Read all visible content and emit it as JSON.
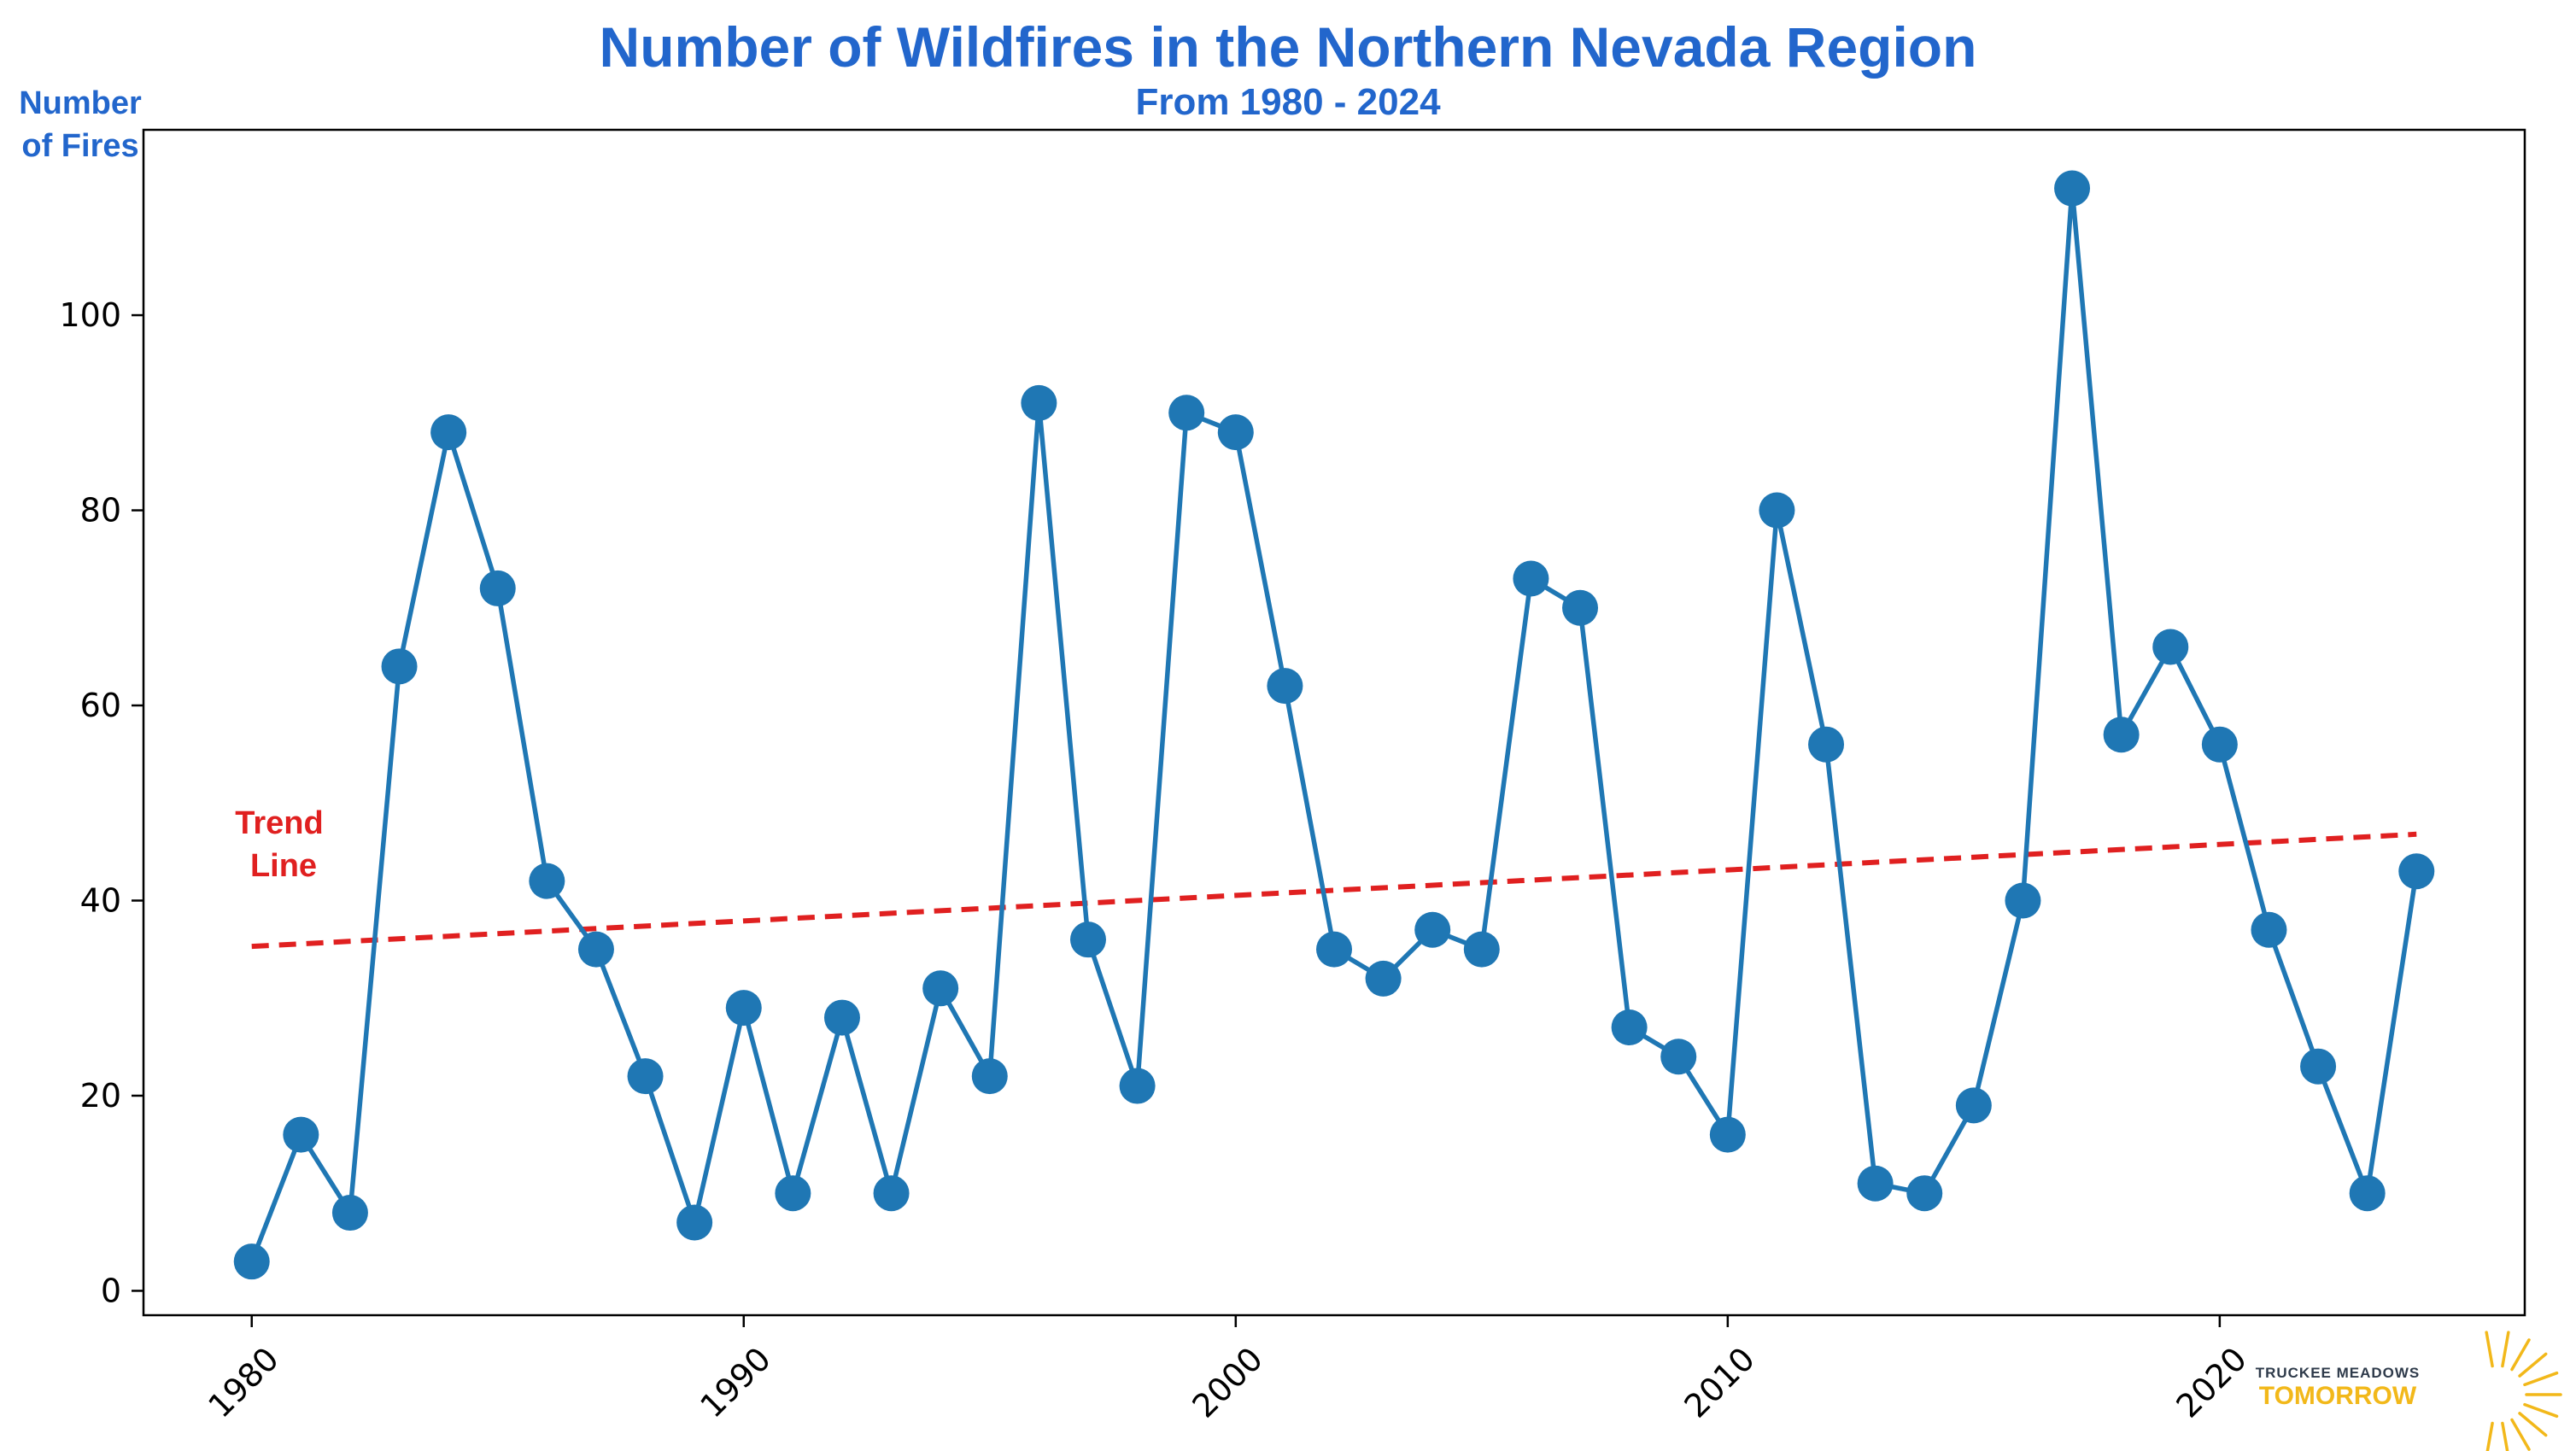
{
  "chart_data": {
    "type": "line",
    "title": "Number of Wildfires in the Northern Nevada Region",
    "subtitle": "From 1980 - 2024",
    "ylabel_line1": "Number",
    "ylabel_line2": "of Fires",
    "xlabel": "",
    "xlim": [
      1977.8,
      2026.2
    ],
    "ylim": [
      -2.5,
      119
    ],
    "x_ticks": [
      1980,
      1990,
      2000,
      2010,
      2020
    ],
    "y_ticks": [
      0,
      20,
      40,
      60,
      80,
      100
    ],
    "series": [
      {
        "name": "Number of Fires",
        "color": "#1f77b4",
        "x": [
          1980,
          1981,
          1982,
          1983,
          1984,
          1985,
          1986,
          1987,
          1988,
          1989,
          1990,
          1991,
          1992,
          1993,
          1994,
          1995,
          1996,
          1997,
          1998,
          1999,
          2000,
          2001,
          2002,
          2003,
          2004,
          2005,
          2006,
          2007,
          2008,
          2009,
          2010,
          2011,
          2012,
          2013,
          2014,
          2015,
          2016,
          2017,
          2018,
          2019,
          2020,
          2021,
          2022,
          2023,
          2024
        ],
        "values": [
          3,
          16,
          8,
          64,
          88,
          72,
          42,
          35,
          22,
          7,
          29,
          10,
          28,
          10,
          31,
          22,
          91,
          36,
          21,
          90,
          88,
          62,
          35,
          32,
          37,
          35,
          73,
          70,
          27,
          24,
          16,
          80,
          56,
          11,
          10,
          19,
          40,
          113,
          57,
          66,
          56,
          37,
          23,
          10,
          43
        ]
      }
    ],
    "trend": {
      "name": "Trend Line",
      "label_line1": "Trend",
      "label_line2": "Line",
      "color": "#e02020",
      "x": [
        1980,
        2024
      ],
      "values": [
        35.3,
        46.8
      ]
    },
    "grid": false,
    "legend": "none"
  },
  "logo": {
    "line1": "TRUCKEE MEADOWS",
    "line2": "TOMORROW",
    "color_dark": "#2e3a4a",
    "color_gold": "#f2b81a"
  }
}
